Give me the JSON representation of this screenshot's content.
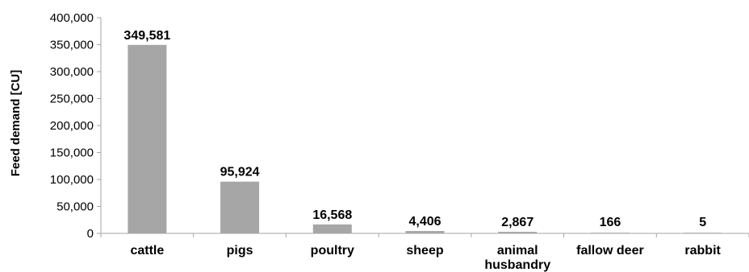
{
  "chart_data": {
    "type": "bar",
    "title": "",
    "xlabel": "",
    "ylabel": "Feed demand [CU]",
    "ylim": [
      0,
      400000
    ],
    "yticks": [
      "0",
      "50,000",
      "100,000",
      "150,000",
      "200,000",
      "250,000",
      "300,000",
      "350,000",
      "400,000"
    ],
    "ytick_values": [
      0,
      50000,
      100000,
      150000,
      200000,
      250000,
      300000,
      350000,
      400000
    ],
    "categories": [
      [
        "cattle"
      ],
      [
        "pigs"
      ],
      [
        "poultry"
      ],
      [
        "sheep"
      ],
      [
        "animal",
        "husbandry"
      ],
      [
        "fallow deer"
      ],
      [
        "rabbit"
      ]
    ],
    "values": [
      349581,
      95924,
      16568,
      4406,
      2867,
      166,
      5
    ],
    "data_labels": [
      "349,581",
      "95,924",
      "16,568",
      "4,406",
      "2,867",
      "166",
      "5"
    ],
    "grid": false,
    "legend": "none",
    "bar_color": "#a6a6a6",
    "axis_color": "#a6a6a6"
  }
}
